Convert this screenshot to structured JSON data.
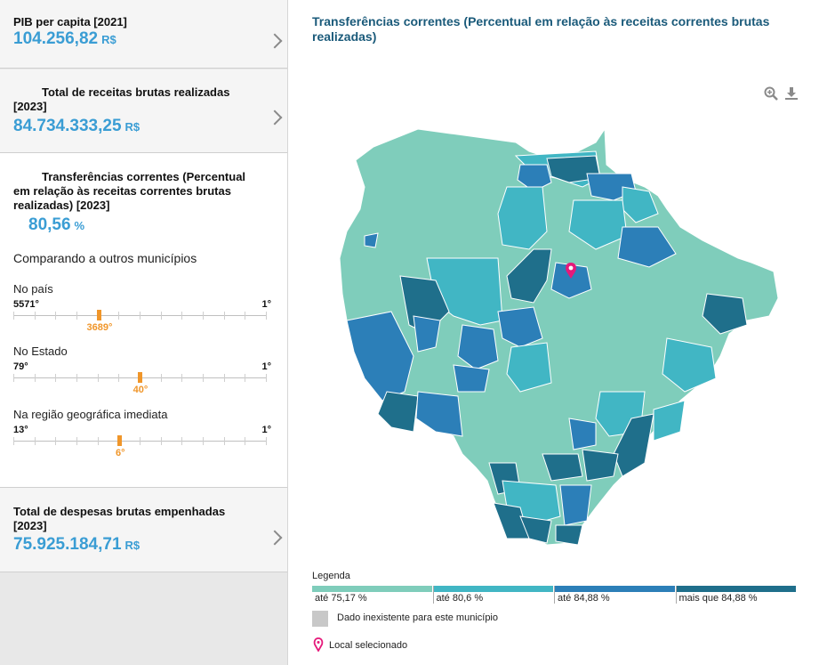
{
  "sidebar": {
    "indicators": [
      {
        "label": "PIB per capita [2021]",
        "value": "104.256,82",
        "unit": "R$"
      },
      {
        "label_line1": "Total de receitas brutas realizadas",
        "label_line2": "[2023]",
        "value": "84.734.333,25",
        "unit": "R$"
      },
      {
        "label_line1": "Transferências correntes (Percentual",
        "label_line2": "em relação às receitas correntes brutas",
        "label_line3": "realizadas) [2023]",
        "value": "80,56",
        "unit": "%"
      },
      {
        "label_line1": "Total de despesas brutas empenhadas",
        "label_line2": "[2023]",
        "value": "75.925.184,71",
        "unit": "R$"
      }
    ],
    "comparison_title": "Comparando a outros municípios",
    "rankings": [
      {
        "label": "No país",
        "total": "5571°",
        "first": "1°",
        "position": "3689°",
        "fraction": 0.338
      },
      {
        "label": "No Estado",
        "total": "79°",
        "first": "1°",
        "position": "40°",
        "fraction": 0.5
      },
      {
        "label": "Na região geográfica imediata",
        "total": "13°",
        "first": "1°",
        "position": "6°",
        "fraction": 0.42
      }
    ]
  },
  "map": {
    "title": "Transferências correntes (Percentual em relação às receitas correntes brutas realizadas)",
    "tools": {
      "zoom_icon": "zoom-in-icon",
      "download_icon": "download-icon"
    },
    "colors": [
      "#7fcdbb",
      "#41b6c4",
      "#2c7fb8",
      "#1f6f8b"
    ]
  },
  "legend": {
    "title": "Legenda",
    "items": [
      {
        "label": "até 75,17 %",
        "color": "#7fcdbb"
      },
      {
        "label": "até 80,6 %",
        "color": "#41b6c4"
      },
      {
        "label": "até 84,88 %",
        "color": "#2c7fb8"
      },
      {
        "label": "mais que 84,88 %",
        "color": "#1f6f8b"
      }
    ],
    "no_data": "Dado inexistente para este município",
    "selected": "Local selecionado"
  }
}
